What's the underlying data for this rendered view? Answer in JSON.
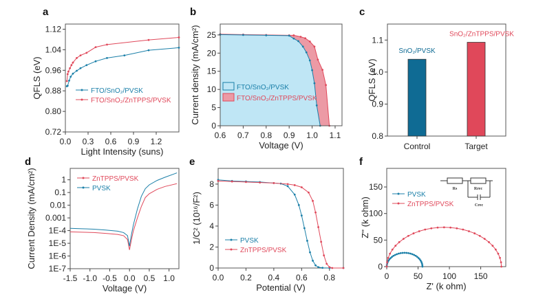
{
  "colors": {
    "blue": "#1a7fa8",
    "red": "#e0485a",
    "blue_fill": "#bfe6f5",
    "red_fill": "#ec9aa5",
    "bar_blue": "#0f6b94",
    "bar_red": "#e0485a"
  },
  "chart_data": [
    {
      "id": "a",
      "panel_label": "a",
      "type": "line",
      "xlabel": "Light Intensity (suns)",
      "ylabel": "QFLS (eV)",
      "xlim": [
        0,
        1.5
      ],
      "ylim": [
        0.72,
        1.14
      ],
      "xticks": [
        0.0,
        0.3,
        0.6,
        0.9,
        1.2
      ],
      "xtick_labels": [
        "0.0",
        "0.3",
        "0.6",
        "0.9",
        "1.2"
      ],
      "yticks": [
        0.72,
        0.8,
        0.88,
        0.96,
        1.04,
        1.12
      ],
      "ytick_labels": [
        "0.72",
        "0.80",
        "0.88",
        "0.96",
        "1.04",
        "1.12"
      ],
      "legend_position": "center-left",
      "series": [
        {
          "name": "FTO/SnO2/PVSK",
          "legend_label": "FTO/SnO₂/PVSK",
          "color": "blue",
          "x": [
            0.02,
            0.03,
            0.05,
            0.07,
            0.1,
            0.15,
            0.2,
            0.28,
            0.4,
            0.55,
            0.78,
            1.1,
            1.5
          ],
          "y": [
            0.898,
            0.9,
            0.92,
            0.935,
            0.947,
            0.958,
            0.968,
            0.98,
            0.995,
            1.008,
            1.018,
            1.038,
            1.048
          ]
        },
        {
          "name": "FTO/SnO2/ZnTPPS/PVSK",
          "legend_label": "FTO/SnO₂/ZnTPPS/PVSK",
          "color": "red",
          "x": [
            0.02,
            0.03,
            0.04,
            0.06,
            0.08,
            0.1,
            0.15,
            0.2,
            0.28,
            0.4,
            0.55,
            1.1,
            1.5
          ],
          "y": [
            0.918,
            0.945,
            0.955,
            0.968,
            0.98,
            0.99,
            1.008,
            1.018,
            1.028,
            1.05,
            1.06,
            1.078,
            1.088
          ]
        }
      ]
    },
    {
      "id": "b",
      "panel_label": "b",
      "type": "area",
      "xlabel": "Voltage (V)",
      "ylabel": "Current density (mA/cm²)",
      "xlim": [
        0.6,
        1.13
      ],
      "ylim": [
        0,
        28
      ],
      "xticks": [
        0.6,
        0.7,
        0.8,
        0.9,
        1.0,
        1.1
      ],
      "xtick_labels": [
        "0.6",
        "0.7",
        "0.8",
        "0.9",
        "1.0",
        "1.1"
      ],
      "yticks": [
        0,
        5,
        10,
        15,
        20,
        25
      ],
      "ytick_labels": [
        "0",
        "5",
        "10",
        "15",
        "20",
        "25"
      ],
      "legend_position": "center-left",
      "series": [
        {
          "name": "FTO/SnO2/PVSK",
          "legend_label": "FTO/SnO₂/PVSK",
          "color": "blue",
          "x": [
            0.6,
            0.7,
            0.8,
            0.9,
            0.92,
            0.94,
            0.96,
            0.975,
            0.99,
            1.0,
            1.01,
            1.02,
            1.035
          ],
          "y": [
            25.1,
            25.0,
            24.9,
            24.8,
            24.0,
            23.3,
            21.8,
            20.2,
            18.0,
            15.3,
            11.7,
            5.6,
            0
          ]
        },
        {
          "name": "FTO/SnO2/ZnTPPS/PVSK",
          "legend_label": "FTO/SnO₂/ZnTPPS/PVSK",
          "color": "red",
          "x": [
            0.6,
            0.7,
            0.8,
            0.9,
            0.92,
            0.95,
            0.97,
            0.99,
            1.01,
            1.025,
            1.045,
            1.06,
            1.075
          ],
          "y": [
            25.2,
            25.1,
            25.0,
            24.9,
            24.9,
            24.5,
            24.1,
            23.2,
            21.8,
            18.2,
            15.4,
            11.2,
            0
          ]
        }
      ]
    },
    {
      "id": "c",
      "panel_label": "c",
      "type": "bar",
      "xlabel": "",
      "ylabel": "QFLS (eV)",
      "ylim": [
        0.8,
        1.15
      ],
      "yticks": [
        0.8,
        0.9,
        1.0,
        1.1
      ],
      "ytick_labels": [
        "0.8",
        "0.9",
        "1.0",
        "1.1"
      ],
      "categories": [
        "Control",
        "Target"
      ],
      "values": [
        1.04,
        1.093
      ],
      "bar_colors": [
        "bar_blue",
        "bar_red"
      ],
      "annotations": [
        "SnO₂/PVSK",
        "SnO₂/ZnTPPS/PVSK"
      ]
    },
    {
      "id": "d",
      "panel_label": "d",
      "type": "line",
      "yscale": "log",
      "xlabel": "Voltage (V)",
      "ylabel": "Current Density (mA/cm²)",
      "xlim": [
        -1.5,
        1.25
      ],
      "ylim_log10": [
        -7,
        0.9
      ],
      "xticks": [
        -1.5,
        -1.0,
        -0.5,
        0.0,
        0.5,
        1.0
      ],
      "xtick_labels": [
        "-1.5",
        "-1.0",
        "-0.5",
        "0.0",
        "0.5",
        "1.0"
      ],
      "yticks_log10": [
        0,
        -1,
        -2,
        -3,
        -4,
        -5,
        -6,
        -7
      ],
      "ytick_labels": [
        "1",
        "0.1",
        "0.01",
        "0.001",
        "1E-4",
        "1E-5",
        "1E-6",
        "1E-7"
      ],
      "legend_position": "top-left",
      "series": [
        {
          "name": "ZnTPPS/PVSK",
          "legend_label": "ZnTPPS/PVSK",
          "color": "red",
          "x": [
            -1.5,
            -1.2,
            -0.9,
            -0.6,
            -0.3,
            -0.15,
            -0.05,
            0.0,
            0.05,
            0.1,
            0.2,
            0.3,
            0.4,
            0.5,
            0.7,
            0.9,
            1.2
          ],
          "y": [
            8e-05,
            7.5e-05,
            7e-05,
            6e-05,
            5e-05,
            4e-05,
            2e-05,
            3e-06,
            2e-05,
            0.0001,
            0.001,
            0.008,
            0.04,
            0.08,
            0.18,
            0.3,
            0.5
          ]
        },
        {
          "name": "PVSK",
          "legend_label": "PVSK",
          "color": "blue",
          "x": [
            -1.5,
            -1.2,
            -0.9,
            -0.6,
            -0.3,
            -0.15,
            -0.05,
            0.0,
            0.05,
            0.1,
            0.2,
            0.3,
            0.4,
            0.5,
            0.7,
            0.9,
            1.2
          ],
          "y": [
            0.00015,
            0.00014,
            0.00013,
            0.00011,
            9e-05,
            7e-05,
            4e-05,
            6e-06,
            5e-05,
            0.0003,
            0.005,
            0.05,
            0.2,
            0.4,
            0.9,
            1.6,
            3.5
          ]
        }
      ]
    },
    {
      "id": "e",
      "panel_label": "e",
      "type": "line",
      "xlabel": "Potential (V)",
      "ylabel": "1/C² (10¹⁶/F²)",
      "xlim": [
        0,
        0.9
      ],
      "ylim": [
        0,
        9.5
      ],
      "xticks": [
        0.0,
        0.2,
        0.4,
        0.6,
        0.8
      ],
      "xtick_labels": [
        "0.0",
        "0.2",
        "0.4",
        "0.6",
        "0.8"
      ],
      "yticks": [
        0,
        2,
        4,
        6,
        8
      ],
      "ytick_labels": [
        "0",
        "2",
        "4",
        "6",
        "8"
      ],
      "legend_position": "center-left",
      "series": [
        {
          "name": "PVSK",
          "legend_label": "PVSK",
          "color": "blue",
          "x": [
            0.0,
            0.1,
            0.2,
            0.3,
            0.4,
            0.45,
            0.5,
            0.55,
            0.58,
            0.6,
            0.62,
            0.64,
            0.66,
            0.68,
            0.7,
            0.72,
            0.75,
            0.8,
            0.9
          ],
          "y": [
            8.4,
            8.3,
            8.25,
            8.2,
            8.1,
            8.05,
            7.8,
            7.0,
            6.0,
            5.0,
            3.8,
            2.6,
            1.5,
            0.7,
            0.25,
            0.08,
            0.02,
            0.0,
            0.0
          ]
        },
        {
          "name": "ZnTPPS/PVSK",
          "legend_label": "ZnTPPS/PVSK",
          "color": "red",
          "x": [
            0.0,
            0.1,
            0.2,
            0.3,
            0.4,
            0.5,
            0.55,
            0.6,
            0.65,
            0.68,
            0.7,
            0.72,
            0.74,
            0.76,
            0.78,
            0.8,
            0.82,
            0.9
          ],
          "y": [
            8.3,
            8.25,
            8.2,
            8.15,
            8.1,
            8.0,
            7.9,
            7.7,
            7.2,
            6.4,
            5.3,
            3.9,
            2.5,
            1.2,
            0.4,
            0.08,
            0.0,
            0.0
          ]
        }
      ]
    },
    {
      "id": "f",
      "panel_label": "f",
      "type": "line",
      "xlabel": "Z' (k ohm)",
      "ylabel": "Z'' (k ohm)",
      "xlim": [
        0,
        190
      ],
      "ylim": [
        0,
        185
      ],
      "xticks": [
        0,
        50,
        100,
        150
      ],
      "xtick_labels": [
        "0",
        "50",
        "100",
        "150"
      ],
      "yticks": [
        0,
        50,
        100,
        150
      ],
      "ytick_labels": [
        "0",
        "50",
        "100",
        "150"
      ],
      "legend_position": "top-left",
      "semicircles": [
        {
          "name": "PVSK",
          "legend_label": "PVSK",
          "color": "blue",
          "z_start": 0,
          "z_end": 57,
          "peak": 26
        },
        {
          "name": "ZnTPPS/PVSK",
          "legend_label": "ZnTPPS/PVSK",
          "color": "red",
          "z_start": 0,
          "z_end": 183,
          "peak": 74
        }
      ],
      "inset_circuit": {
        "labels": [
          "Rₛ",
          "Rᵣₑ꜀",
          "Cᵣₑ꜀"
        ],
        "rs": "Rs",
        "rrec": "Rrec",
        "crec": "Crec"
      }
    }
  ]
}
